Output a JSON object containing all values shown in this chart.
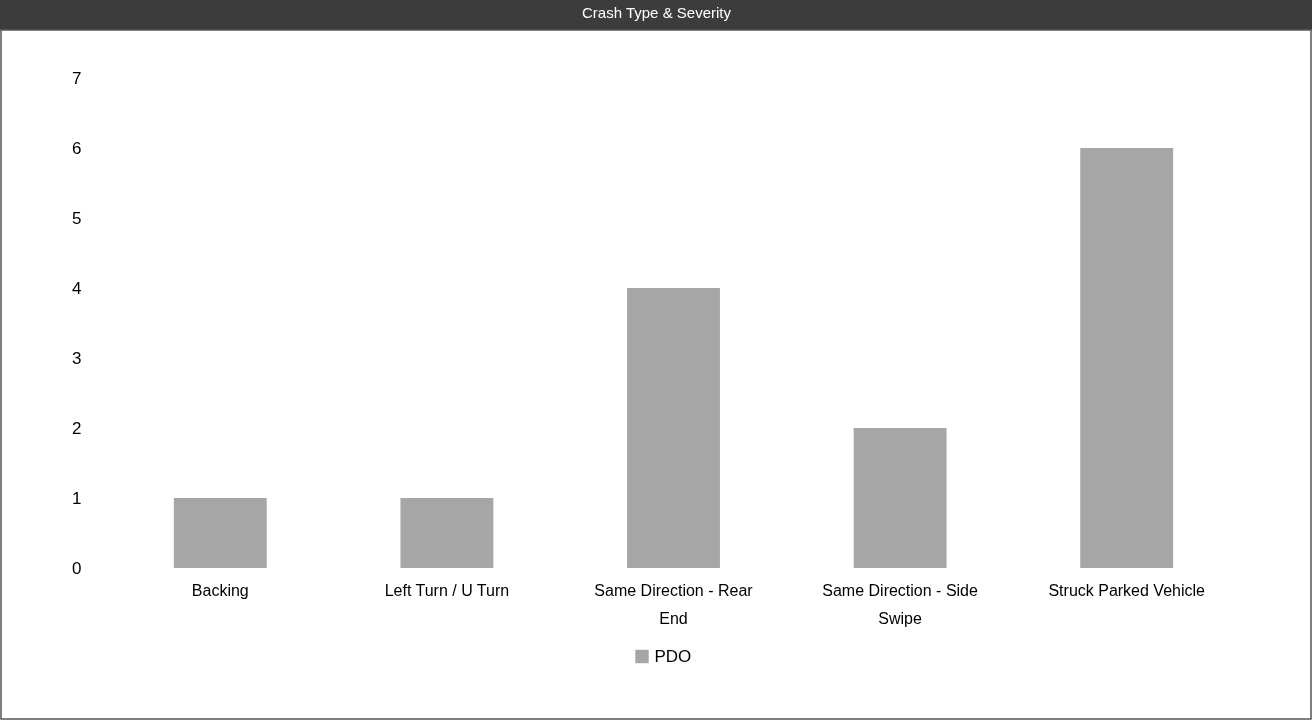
{
  "chart_data": {
    "type": "bar",
    "title": "Crash Type & Severity",
    "categories": [
      "Backing",
      "Left Turn / U Turn",
      "Same Direction - Rear End",
      "Same Direction - Side Swipe",
      "Struck Parked Vehicle"
    ],
    "series": [
      {
        "name": "PDO",
        "color": "#a6a6a6",
        "values": [
          1,
          1,
          4,
          2,
          6
        ]
      }
    ],
    "ylim": [
      0,
      7
    ],
    "yticks": [
      0,
      1,
      2,
      3,
      4,
      5,
      6,
      7
    ],
    "legend": "bottom"
  }
}
